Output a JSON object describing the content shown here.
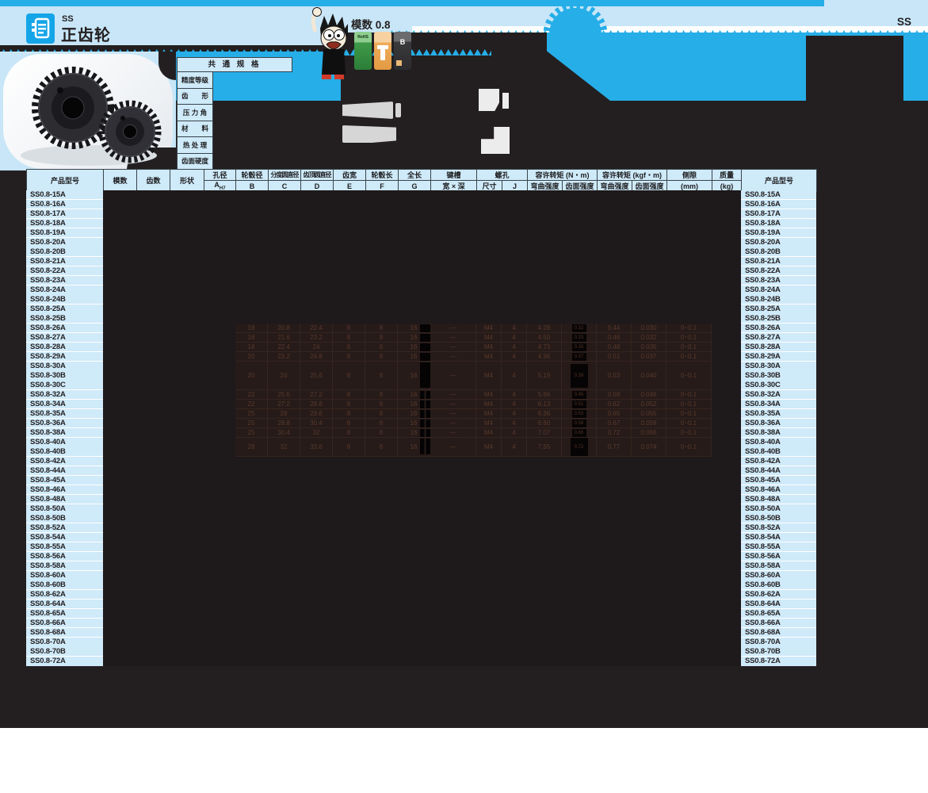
{
  "header": {
    "series_small": "SS",
    "title": "正齿轮",
    "module_label": "模数 0.8",
    "corner_label": "SS",
    "icons": {
      "rohs": "RoHS",
      "b": "B"
    }
  },
  "spec_box": {
    "title": "共 通 规 格",
    "rows": [
      "精度等级",
      "齿　　形",
      "压 力 角",
      "材　　料",
      "热 处 理",
      "齿面硬度"
    ]
  },
  "table": {
    "h1": {
      "product": "产品型号",
      "module": "模数",
      "teeth": "齿数",
      "shape": "形状",
      "bore": "孔径",
      "hub_dia": "轮毂径",
      "pitch_dia": "分度圆直径",
      "tip_dia": "齿顶圆直径",
      "face_width": "齿宽",
      "hub_len": "轮毂长",
      "total_len": "全长",
      "keyway": "键槽",
      "tap": "螺孔",
      "torque_nm": "容许转矩 (N・m)",
      "torque_kgf": "容许转矩 (kgf・m)",
      "backlash": "侧隙",
      "mass": "质量",
      "product2": "产品型号"
    },
    "h2": {
      "bore_a": "A",
      "bore_tol": "H7",
      "b": "B",
      "c": "C",
      "d": "D",
      "e": "E",
      "f": "F",
      "g": "G",
      "keyway_wd": "宽 × 深",
      "tap_size": "尺寸",
      "tap_j": "J",
      "bend": "弯曲强度",
      "surface": "齿面强度",
      "bend2": "弯曲强度",
      "surface2": "齿面强度",
      "backlash_unit": "(mm)",
      "mass_unit": "(kg)"
    },
    "groups": [
      [
        "SS0.8-15A"
      ],
      [
        "SS0.8-16A"
      ],
      [
        "SS0.8-17A"
      ],
      [
        "SS0.8-18A"
      ],
      [
        "SS0.8-19A"
      ],
      [
        "SS0.8-20A",
        "SS0.8-20B"
      ],
      [
        "SS0.8-21A"
      ],
      [
        "SS0.8-22A"
      ],
      [
        "SS0.8-23A"
      ],
      [
        "SS0.8-24A",
        "SS0.8-24B"
      ],
      [
        "SS0.8-25A",
        "SS0.8-25B"
      ],
      [
        "SS0.8-26A"
      ],
      [
        "SS0.8-27A"
      ],
      [
        "SS0.8-28A"
      ],
      [
        "SS0.8-29A"
      ],
      [
        "SS0.8-30A",
        "SS0.8-30B",
        "SS0.8-30C"
      ],
      [
        "SS0.8-32A"
      ],
      [
        "SS0.8-34A"
      ],
      [
        "SS0.8-35A"
      ],
      [
        "SS0.8-36A"
      ],
      [
        "SS0.8-38A"
      ],
      [
        "SS0.8-40A",
        "SS0.8-40B"
      ],
      [
        "SS0.8-42A"
      ],
      [
        "SS0.8-44A"
      ],
      [
        "SS0.8-45A"
      ],
      [
        "SS0.8-46A"
      ],
      [
        "SS0.8-48A"
      ],
      [
        "SS0.8-50A",
        "SS0.8-50B"
      ],
      [
        "SS0.8-52A"
      ],
      [
        "SS0.8-54A"
      ],
      [
        "SS0.8-55A"
      ],
      [
        "SS0.8-56A"
      ],
      [
        "SS0.8-58A"
      ],
      [
        "SS0.8-60A",
        "SS0.8-60B"
      ],
      [
        "SS0.8-62A"
      ],
      [
        "SS0.8-64A"
      ],
      [
        "SS0.8-65A"
      ],
      [
        "SS0.8-66A"
      ],
      [
        "SS0.8-68A"
      ],
      [
        "SS0.8-70A",
        "SS0.8-70B"
      ],
      [
        "SS0.8-72A"
      ]
    ],
    "faint_rows": [
      {
        "span": 1,
        "cells": [
          "18",
          "20.8",
          "22.4",
          "8",
          "8",
          "16",
          "—",
          "M4",
          "4",
          "4.28",
          "0.32",
          "0.44",
          "0.030",
          "0~0.1"
        ]
      },
      {
        "span": 1,
        "cells": [
          "18",
          "21.6",
          "23.2",
          "8",
          "8",
          "16",
          "—",
          "M4",
          "4",
          "4.50",
          "0.33",
          "0.46",
          "0.032",
          "0~0.1"
        ]
      },
      {
        "span": 1,
        "cells": [
          "18",
          "22.4",
          "24",
          "8",
          "8",
          "16",
          "—",
          "M4",
          "4",
          "4.73",
          "0.35",
          "0.48",
          "0.035",
          "0~0.1"
        ]
      },
      {
        "span": 1,
        "cells": [
          "20",
          "23.2",
          "24.8",
          "8",
          "8",
          "16",
          "—",
          "M4",
          "4",
          "4.96",
          "0.37",
          "0.51",
          "0.037",
          "0~0.1"
        ]
      },
      {
        "span": 3,
        "cells": [
          "20",
          "24",
          "25.6",
          "8",
          "8",
          "16",
          "—",
          "M4",
          "4",
          "5.19",
          "0.39",
          "0.53",
          "0.040",
          "0~0.1"
        ]
      },
      {
        "span": 1,
        "cells": [
          "22",
          "25.6",
          "27.2",
          "8",
          "8",
          "16",
          "—",
          "M4",
          "4",
          "5.66",
          "0.45",
          "0.58",
          "0.046",
          "0~0.1"
        ]
      },
      {
        "span": 1,
        "cells": [
          "22",
          "27.2",
          "28.8",
          "8",
          "8",
          "16",
          "—",
          "M4",
          "4",
          "6.13",
          "0.51",
          "0.62",
          "0.052",
          "0~0.1"
        ]
      },
      {
        "span": 1,
        "cells": [
          "25",
          "28",
          "29.6",
          "8",
          "8",
          "16",
          "—",
          "M4",
          "4",
          "6.36",
          "0.53",
          "0.65",
          "0.055",
          "0~0.1"
        ]
      },
      {
        "span": 1,
        "cells": [
          "25",
          "28.8",
          "30.4",
          "8",
          "8",
          "16",
          "—",
          "M4",
          "4",
          "6.60",
          "0.58",
          "0.67",
          "0.059",
          "0~0.1"
        ]
      },
      {
        "span": 1,
        "cells": [
          "25",
          "30.4",
          "32",
          "8",
          "8",
          "16",
          "—",
          "M4",
          "4",
          "7.07",
          "0.65",
          "0.72",
          "0.066",
          "0~0.1"
        ]
      },
      {
        "span": 2,
        "cells": [
          "28",
          "32",
          "33.6",
          "8",
          "8",
          "16",
          "—",
          "M4",
          "4",
          "7.55",
          "0.72",
          "0.77",
          "0.074",
          "0~0.1"
        ]
      }
    ]
  },
  "colors": {
    "light_blue": "#c8e6f7",
    "bright_blue": "#26aee8",
    "cell_blue": "#cfeaf9",
    "page_dark": "#231f20",
    "body_dark": "#1e191a"
  }
}
